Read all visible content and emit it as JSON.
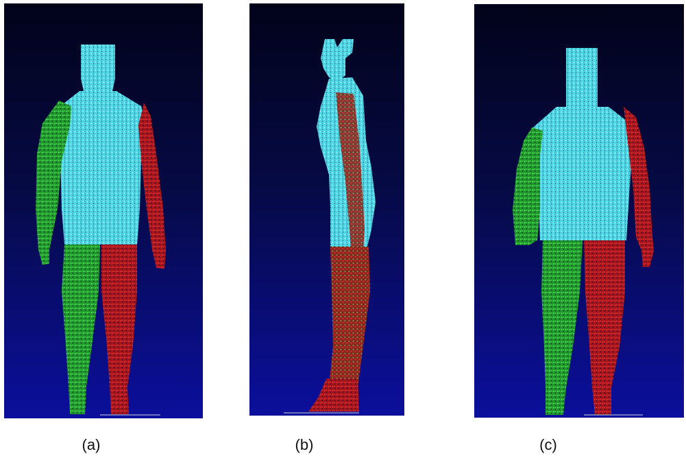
{
  "palette": {
    "background_top": "#02031a",
    "background_bottom": "#0a0c9a",
    "torso": "#5fe6f0",
    "left_limbs": "#2fd93a",
    "right_limbs": "#e01818"
  },
  "panels": [
    {
      "id": "a",
      "caption": "(a)",
      "view": "front"
    },
    {
      "id": "b",
      "caption": "(b)",
      "view": "side"
    },
    {
      "id": "c",
      "caption": "(c)",
      "view": "back"
    }
  ]
}
